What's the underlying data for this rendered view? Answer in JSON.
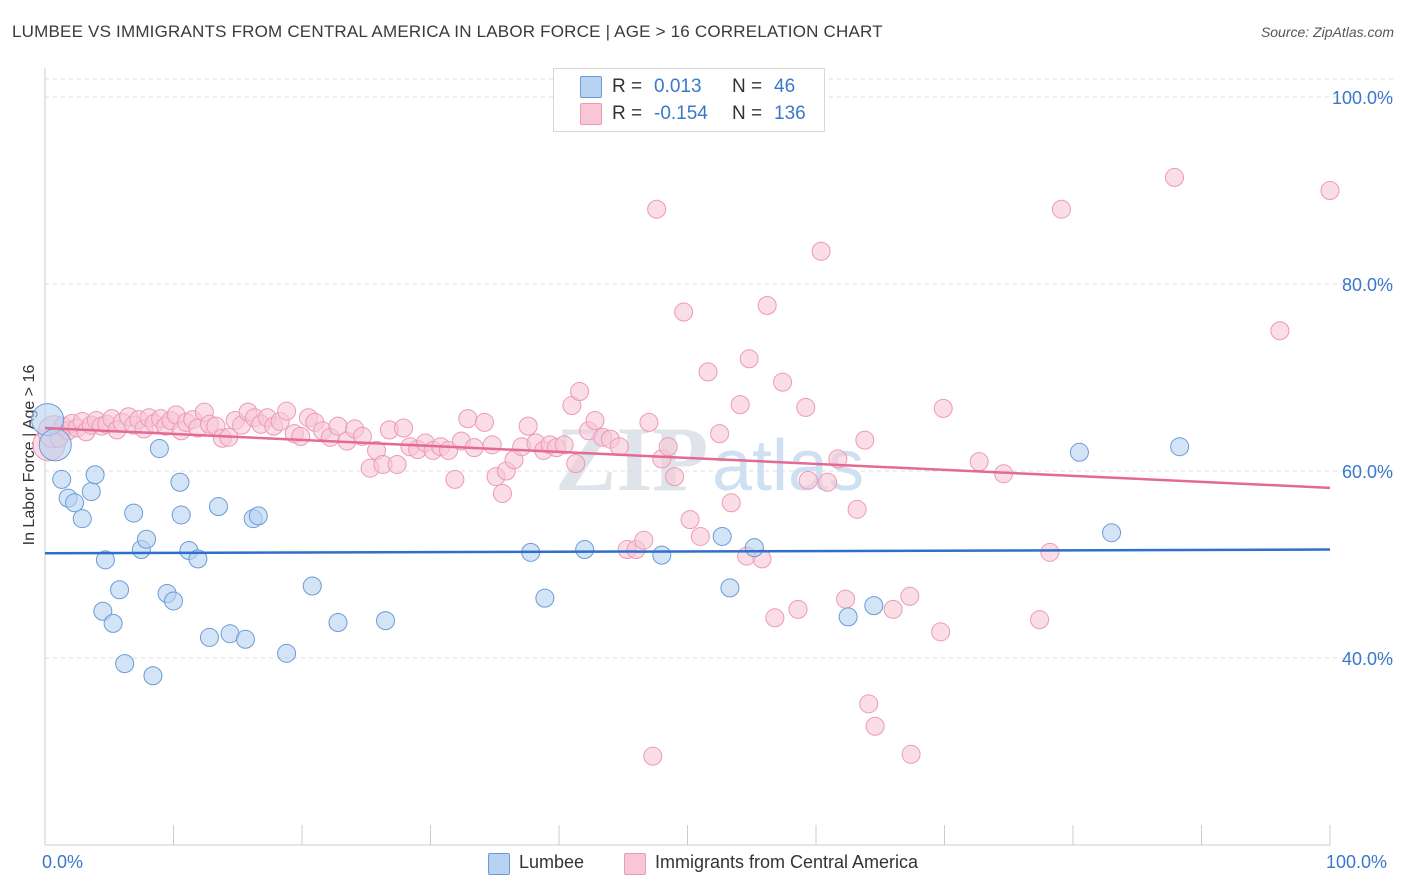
{
  "title": "LUMBEE VS IMMIGRANTS FROM CENTRAL AMERICA IN LABOR FORCE | AGE > 16 CORRELATION CHART",
  "source": "Source: ZipAtlas.com",
  "watermark": {
    "zip": "ZIP",
    "atlas": "atlas"
  },
  "colors": {
    "blue_fill": "#b8d2f2",
    "blue_stroke": "#6b9bd6",
    "blue_line": "#2e6fcb",
    "pink_fill": "#f9c6d6",
    "pink_stroke": "#ec9ab6",
    "pink_line": "#e46a94",
    "axis_text": "#3a78c9"
  },
  "legend": {
    "r_label": "R =",
    "n_label": "N =",
    "lumbee": {
      "r": "0.013",
      "n": "46"
    },
    "immigrants": {
      "r": "-0.154",
      "n": "136"
    }
  },
  "chart_data": {
    "type": "scatter",
    "title": "LUMBEE VS IMMIGRANTS FROM CENTRAL AMERICA IN LABOR FORCE | AGE > 16 CORRELATION CHART",
    "xlabel": "",
    "ylabel": "In Labor Force | Age > 16",
    "xlim": [
      0,
      100
    ],
    "ylim": [
      20,
      100
    ],
    "x_tick_labels": [
      "0.0%",
      "100.0%"
    ],
    "y_ticks": [
      {
        "value": 100,
        "label": "100.0%"
      },
      {
        "value": 80,
        "label": "80.0%"
      },
      {
        "value": 60,
        "label": "60.0%"
      },
      {
        "value": 40,
        "label": "40.0%"
      }
    ],
    "legend_position": "bottom",
    "series": [
      {
        "name": "Lumbee",
        "color": "#b8d2f2",
        "trend": {
          "x": [
            0,
            100
          ],
          "y": [
            51.2,
            51.6
          ]
        },
        "points": [
          [
            0.2,
            65.5
          ],
          [
            0.8,
            62.8
          ],
          [
            1.3,
            59.1
          ],
          [
            1.8,
            57.1
          ],
          [
            2.3,
            56.6
          ],
          [
            2.9,
            54.9
          ],
          [
            3.6,
            57.8
          ],
          [
            3.9,
            59.6
          ],
          [
            4.5,
            45.0
          ],
          [
            4.7,
            50.5
          ],
          [
            5.3,
            43.7
          ],
          [
            5.8,
            47.3
          ],
          [
            6.2,
            39.4
          ],
          [
            6.9,
            55.5
          ],
          [
            7.5,
            51.6
          ],
          [
            7.9,
            52.7
          ],
          [
            8.4,
            38.1
          ],
          [
            8.9,
            62.4
          ],
          [
            9.5,
            46.9
          ],
          [
            10.0,
            46.1
          ],
          [
            10.5,
            58.8
          ],
          [
            10.6,
            55.3
          ],
          [
            11.2,
            51.5
          ],
          [
            11.9,
            50.6
          ],
          [
            12.8,
            42.2
          ],
          [
            13.5,
            56.2
          ],
          [
            14.4,
            42.6
          ],
          [
            15.6,
            42.0
          ],
          [
            16.2,
            54.9
          ],
          [
            16.6,
            55.2
          ],
          [
            18.8,
            40.5
          ],
          [
            20.8,
            47.7
          ],
          [
            22.8,
            43.8
          ],
          [
            26.5,
            44.0
          ],
          [
            37.8,
            51.3
          ],
          [
            38.9,
            46.4
          ],
          [
            42.0,
            51.6
          ],
          [
            48.0,
            51.0
          ],
          [
            52.7,
            53.0
          ],
          [
            53.3,
            47.5
          ],
          [
            55.2,
            51.8
          ],
          [
            62.5,
            44.4
          ],
          [
            64.5,
            45.6
          ],
          [
            80.5,
            62.0
          ],
          [
            83.0,
            53.4
          ],
          [
            88.3,
            62.6
          ]
        ]
      },
      {
        "name": "Immigrants from Central America",
        "color": "#f9c6d6",
        "trend": {
          "x": [
            0,
            100
          ],
          "y": [
            64.6,
            58.2
          ]
        },
        "points": [
          [
            0.3,
            62.8
          ],
          [
            0.7,
            64.2
          ],
          [
            1.1,
            63.5
          ],
          [
            1.4,
            64.8
          ],
          [
            1.8,
            64.3
          ],
          [
            2.1,
            65.1
          ],
          [
            2.5,
            64.6
          ],
          [
            2.9,
            65.3
          ],
          [
            3.2,
            64.2
          ],
          [
            3.6,
            64.9
          ],
          [
            4.0,
            65.4
          ],
          [
            4.4,
            64.8
          ],
          [
            4.8,
            65.0
          ],
          [
            5.2,
            65.6
          ],
          [
            5.6,
            64.4
          ],
          [
            6.0,
            65.2
          ],
          [
            6.5,
            65.8
          ],
          [
            6.9,
            64.9
          ],
          [
            7.3,
            65.5
          ],
          [
            7.7,
            64.5
          ],
          [
            8.1,
            65.7
          ],
          [
            8.5,
            65.1
          ],
          [
            9.0,
            65.6
          ],
          [
            9.4,
            64.8
          ],
          [
            9.8,
            65.4
          ],
          [
            10.2,
            66.0
          ],
          [
            10.6,
            64.3
          ],
          [
            11.0,
            65.2
          ],
          [
            11.5,
            65.5
          ],
          [
            11.9,
            64.6
          ],
          [
            12.4,
            66.3
          ],
          [
            12.8,
            65.0
          ],
          [
            13.3,
            64.8
          ],
          [
            13.8,
            63.5
          ],
          [
            14.3,
            63.6
          ],
          [
            14.8,
            65.4
          ],
          [
            15.3,
            64.9
          ],
          [
            15.8,
            66.3
          ],
          [
            16.3,
            65.7
          ],
          [
            16.8,
            65.0
          ],
          [
            17.3,
            65.7
          ],
          [
            17.8,
            64.8
          ],
          [
            18.3,
            65.3
          ],
          [
            18.8,
            66.4
          ],
          [
            19.4,
            64.0
          ],
          [
            19.9,
            63.7
          ],
          [
            20.5,
            65.7
          ],
          [
            21.0,
            65.2
          ],
          [
            21.6,
            64.3
          ],
          [
            22.2,
            63.6
          ],
          [
            22.8,
            64.8
          ],
          [
            23.5,
            63.2
          ],
          [
            24.1,
            64.5
          ],
          [
            24.7,
            63.7
          ],
          [
            25.3,
            60.3
          ],
          [
            25.8,
            62.2
          ],
          [
            26.3,
            60.7
          ],
          [
            26.8,
            64.4
          ],
          [
            27.4,
            60.7
          ],
          [
            27.9,
            64.6
          ],
          [
            28.4,
            62.6
          ],
          [
            29.0,
            62.3
          ],
          [
            29.6,
            63.0
          ],
          [
            30.2,
            62.2
          ],
          [
            30.8,
            62.6
          ],
          [
            31.4,
            62.2
          ],
          [
            31.9,
            59.1
          ],
          [
            32.4,
            63.2
          ],
          [
            32.9,
            65.6
          ],
          [
            33.4,
            62.5
          ],
          [
            34.2,
            65.2
          ],
          [
            34.8,
            62.8
          ],
          [
            35.1,
            59.4
          ],
          [
            35.6,
            57.6
          ],
          [
            35.9,
            60.0
          ],
          [
            36.5,
            61.2
          ],
          [
            37.1,
            62.6
          ],
          [
            37.6,
            64.8
          ],
          [
            38.2,
            63.0
          ],
          [
            38.8,
            62.2
          ],
          [
            39.3,
            62.8
          ],
          [
            39.8,
            62.5
          ],
          [
            40.4,
            62.8
          ],
          [
            41.0,
            67.0
          ],
          [
            41.3,
            60.8
          ],
          [
            41.6,
            68.5
          ],
          [
            42.3,
            64.3
          ],
          [
            42.8,
            65.4
          ],
          [
            43.4,
            63.6
          ],
          [
            44.0,
            63.4
          ],
          [
            44.7,
            62.6
          ],
          [
            45.3,
            51.6
          ],
          [
            46.0,
            51.6
          ],
          [
            46.6,
            52.6
          ],
          [
            47.0,
            65.2
          ],
          [
            47.3,
            29.5
          ],
          [
            47.6,
            88.0
          ],
          [
            48.0,
            61.3
          ],
          [
            48.5,
            62.6
          ],
          [
            49.0,
            59.4
          ],
          [
            49.7,
            77.0
          ],
          [
            50.2,
            54.8
          ],
          [
            51.0,
            53.0
          ],
          [
            51.6,
            70.6
          ],
          [
            52.5,
            64.0
          ],
          [
            53.4,
            56.6
          ],
          [
            54.1,
            67.1
          ],
          [
            54.6,
            50.9
          ],
          [
            54.8,
            72.0
          ],
          [
            55.8,
            50.6
          ],
          [
            56.2,
            77.7
          ],
          [
            56.8,
            44.3
          ],
          [
            57.4,
            69.5
          ],
          [
            58.6,
            45.2
          ],
          [
            59.2,
            66.8
          ],
          [
            59.4,
            59.0
          ],
          [
            60.4,
            83.5
          ],
          [
            60.9,
            58.8
          ],
          [
            61.7,
            61.3
          ],
          [
            62.3,
            46.3
          ],
          [
            63.2,
            55.9
          ],
          [
            63.8,
            63.3
          ],
          [
            64.1,
            35.1
          ],
          [
            64.6,
            32.7
          ],
          [
            66.0,
            45.2
          ],
          [
            67.3,
            46.6
          ],
          [
            67.4,
            29.7
          ],
          [
            69.7,
            42.8
          ],
          [
            69.9,
            66.7
          ],
          [
            72.7,
            61.0
          ],
          [
            74.6,
            59.7
          ],
          [
            77.4,
            44.1
          ],
          [
            78.2,
            51.3
          ],
          [
            79.1,
            88.0
          ],
          [
            87.9,
            91.4
          ],
          [
            96.1,
            75.0
          ],
          [
            100.0,
            90.0
          ]
        ]
      }
    ]
  },
  "bottom_legend": {
    "lumbee": "Lumbee",
    "immigrants": "Immigrants from Central America"
  }
}
